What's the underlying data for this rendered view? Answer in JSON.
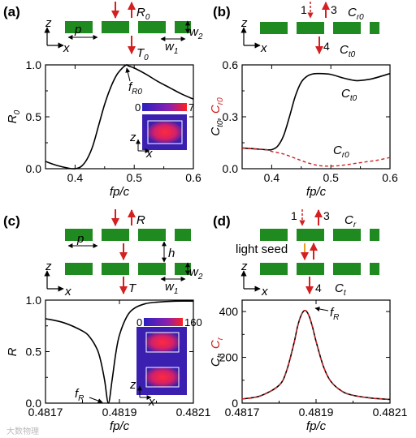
{
  "colors": {
    "block": "#1f8a1f",
    "arrow": "#d42020",
    "curve": "#000000",
    "dashed": "#d42020",
    "inset_bg": "#3a1fb0",
    "inset_hot": "#ff2a3a"
  },
  "panels": {
    "a": {
      "label": "(a)",
      "R": "R",
      "R_sub": "0",
      "T": "T",
      "T_sub": "0",
      "p": "p",
      "w2": "w",
      "w2_sub": "2",
      "w1": "w",
      "w1_sub": "1",
      "z": "z",
      "x": "x"
    },
    "b": {
      "label": "(b)",
      "n1": "1",
      "n3": "3",
      "n4": "4",
      "Cr": "C",
      "Cr_sub": "r0",
      "Ct": "C",
      "Ct_sub": "t0"
    },
    "c": {
      "label": "(c)",
      "R": "R",
      "T": "T",
      "p": "p",
      "h": "h",
      "w2": "w",
      "w2_sub": "2",
      "w1": "w",
      "w1_sub": "1",
      "z": "z",
      "x": "x"
    },
    "d": {
      "label": "(d)",
      "n1": "1",
      "n3": "3",
      "n4": "4",
      "Cr": "C",
      "Cr_sub": "r",
      "Ct": "C",
      "Ct_sub": "t",
      "seed": "light seed",
      "z": "z",
      "x": "x"
    }
  },
  "watermark": "大数物理",
  "chart_data": [
    {
      "id": "a",
      "type": "line",
      "xlabel": "fp/c",
      "ylabel": "R",
      "ylabel_sub": "0",
      "xlim": [
        0.35,
        0.6
      ],
      "ylim": [
        0.0,
        1.0
      ],
      "xticks": [
        "0.4",
        "0.5",
        "0.6"
      ],
      "yticks": [
        "0.0",
        "0.5",
        "1.0"
      ],
      "annotation": {
        "text": "f",
        "sub": "R0",
        "x": 0.487,
        "y": 1.0
      },
      "inset": {
        "cmin": "0",
        "cmax": "7",
        "z": "z",
        "x": "x"
      },
      "series": [
        {
          "x": [
            0.35,
            0.37,
            0.39,
            0.4,
            0.41,
            0.42,
            0.43,
            0.44,
            0.45,
            0.46,
            0.47,
            0.48,
            0.487,
            0.49,
            0.5,
            0.52,
            0.54,
            0.56,
            0.58,
            0.6
          ],
          "y": [
            0.07,
            0.03,
            0.004,
            0.0,
            0.02,
            0.09,
            0.22,
            0.42,
            0.62,
            0.78,
            0.9,
            0.97,
            1.0,
            0.99,
            0.97,
            0.91,
            0.84,
            0.78,
            0.72,
            0.67
          ]
        }
      ]
    },
    {
      "id": "b",
      "type": "line",
      "xlabel": "fp/c",
      "ylabel": "C, C",
      "xlim": [
        0.35,
        0.6
      ],
      "ylim": [
        0.0,
        0.6
      ],
      "xticks": [
        "0.4",
        "0.5",
        "0.6"
      ],
      "yticks": [
        "0.0",
        "0.3",
        "0.6"
      ],
      "series": [
        {
          "name": "Ct0",
          "style": "solid",
          "x": [
            0.35,
            0.37,
            0.39,
            0.4,
            0.41,
            0.42,
            0.43,
            0.44,
            0.45,
            0.46,
            0.47,
            0.48,
            0.5,
            0.52,
            0.54,
            0.55,
            0.57,
            0.6
          ],
          "y": [
            0.12,
            0.115,
            0.11,
            0.11,
            0.13,
            0.19,
            0.3,
            0.42,
            0.5,
            0.535,
            0.548,
            0.55,
            0.545,
            0.525,
            0.51,
            0.51,
            0.52,
            0.55
          ]
        },
        {
          "name": "Cr0",
          "style": "dashed",
          "x": [
            0.35,
            0.37,
            0.39,
            0.4,
            0.42,
            0.44,
            0.46,
            0.48,
            0.5,
            0.52,
            0.54,
            0.56,
            0.58,
            0.6
          ],
          "y": [
            0.12,
            0.115,
            0.11,
            0.1,
            0.085,
            0.06,
            0.035,
            0.018,
            0.015,
            0.02,
            0.03,
            0.04,
            0.05,
            0.065
          ]
        }
      ]
    },
    {
      "id": "c",
      "type": "line",
      "xlabel": "fp/c",
      "ylabel": "R",
      "xlim": [
        0.4817,
        0.4821
      ],
      "ylim": [
        0.0,
        1.0
      ],
      "xticks": [
        "0.4817",
        "0.4819",
        "0.4821"
      ],
      "yticks": [
        "0.0",
        "0.5",
        "1.0"
      ],
      "annotation": {
        "text": "f",
        "sub": "R",
        "x": 0.48187,
        "y": 0.0
      },
      "inset": {
        "cmin": "0",
        "cmax": "160",
        "z": "z",
        "x": "x"
      },
      "series": [
        {
          "x": [
            0.4817,
            0.48175,
            0.4818,
            0.48182,
            0.48184,
            0.48185,
            0.48186,
            0.48187,
            0.48188,
            0.48189,
            0.4819,
            0.48192,
            0.48194,
            0.48197,
            0.482,
            0.48205,
            0.4821
          ],
          "y": [
            0.82,
            0.78,
            0.7,
            0.64,
            0.52,
            0.4,
            0.22,
            0.0,
            0.22,
            0.48,
            0.66,
            0.84,
            0.92,
            0.965,
            0.98,
            0.99,
            0.99
          ]
        }
      ]
    },
    {
      "id": "d",
      "type": "line",
      "xlabel": "fp/c",
      "ylabel": "C, C",
      "xlim": [
        0.4817,
        0.4821
      ],
      "ylim": [
        0,
        450
      ],
      "xticks": [
        "0.4817",
        "0.4819",
        "0.4821"
      ],
      "yticks": [
        "0",
        "200",
        "400"
      ],
      "annotation": {
        "text": "f",
        "sub": "R",
        "x": 0.48187,
        "y": 400
      },
      "series": [
        {
          "name": "Ct",
          "style": "solid",
          "x": [
            0.4817,
            0.48175,
            0.4818,
            0.48182,
            0.48184,
            0.48185,
            0.48186,
            0.48187,
            0.48188,
            0.48189,
            0.4819,
            0.48192,
            0.48194,
            0.48197,
            0.482,
            0.48205,
            0.4821
          ],
          "y": [
            18,
            32,
            78,
            140,
            260,
            335,
            385,
            405,
            385,
            335,
            270,
            160,
            95,
            52,
            34,
            22,
            16
          ]
        },
        {
          "name": "Cr",
          "style": "dashed",
          "x": [
            0.4817,
            0.48175,
            0.4818,
            0.48182,
            0.48184,
            0.48185,
            0.48186,
            0.48187,
            0.48188,
            0.48189,
            0.4819,
            0.48192,
            0.48194,
            0.48197,
            0.482,
            0.48205,
            0.4821
          ],
          "y": [
            18,
            32,
            78,
            140,
            260,
            335,
            385,
            405,
            385,
            335,
            270,
            160,
            95,
            52,
            34,
            22,
            16
          ]
        }
      ]
    }
  ]
}
